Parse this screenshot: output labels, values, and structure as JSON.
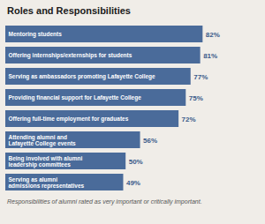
{
  "chart_data": {
    "type": "bar",
    "orientation": "horizontal",
    "title": "Roles and Responsibilities",
    "annotations": [
      "Responsibilities of alumni rated as very important or critically important."
    ],
    "categories": [
      "Mentoring students",
      "Offering internships/externships for students",
      "Serving as ambassadors promoting Lafayette College",
      "Providing financial support for Lafayette College",
      "Offering full-time employment for graduates",
      "Attending alumni and\nLafayette College events",
      "Being involved with alumni\nleadership committees",
      "Serving as alumni\nadmissions representatives"
    ],
    "values": [
      82,
      81,
      77,
      75,
      72,
      56,
      50,
      49
    ],
    "value_labels": [
      "82%",
      "81%",
      "77%",
      "75%",
      "72%",
      "56%",
      "50%",
      "49%"
    ],
    "color": "#4a6b9a",
    "xlim": [
      0,
      105
    ],
    "data_labels": true,
    "tick_labels": false,
    "grid": false
  }
}
